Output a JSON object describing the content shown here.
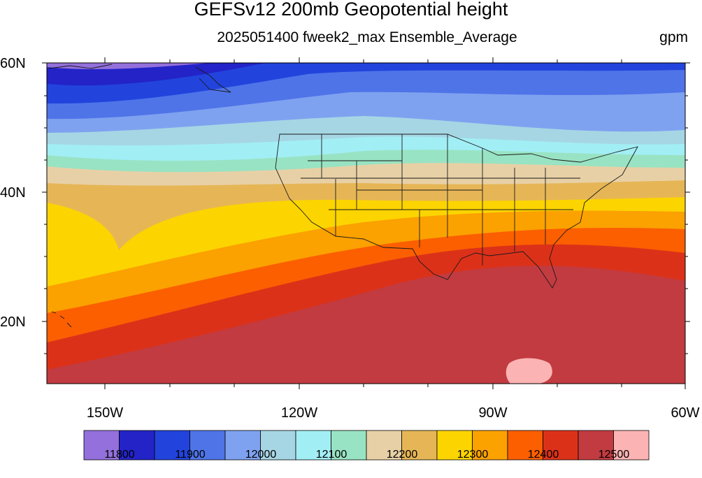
{
  "title": "GEFSv12 200mb Geopotential height",
  "subtitle": "2025051400 fweek2_max Ensemble_Average",
  "units": "gpm",
  "lat_labels": [
    "60N",
    "40N",
    "20N"
  ],
  "lon_labels": [
    "150W",
    "120W",
    "90W",
    "60W"
  ],
  "colorbar": {
    "colors": [
      "#9370db",
      "#2323c8",
      "#2244dd",
      "#4f74e8",
      "#7fa2f0",
      "#a6d6e4",
      "#a2eef5",
      "#98e3c3",
      "#e8d0a6",
      "#e6b656",
      "#fcd400",
      "#fba100",
      "#fb5f00",
      "#dc3119",
      "#c23b40",
      "#fcb3b3"
    ],
    "labels": [
      "11800",
      "11900",
      "12000",
      "12100",
      "12200",
      "12300",
      "12400",
      "12500"
    ]
  }
}
